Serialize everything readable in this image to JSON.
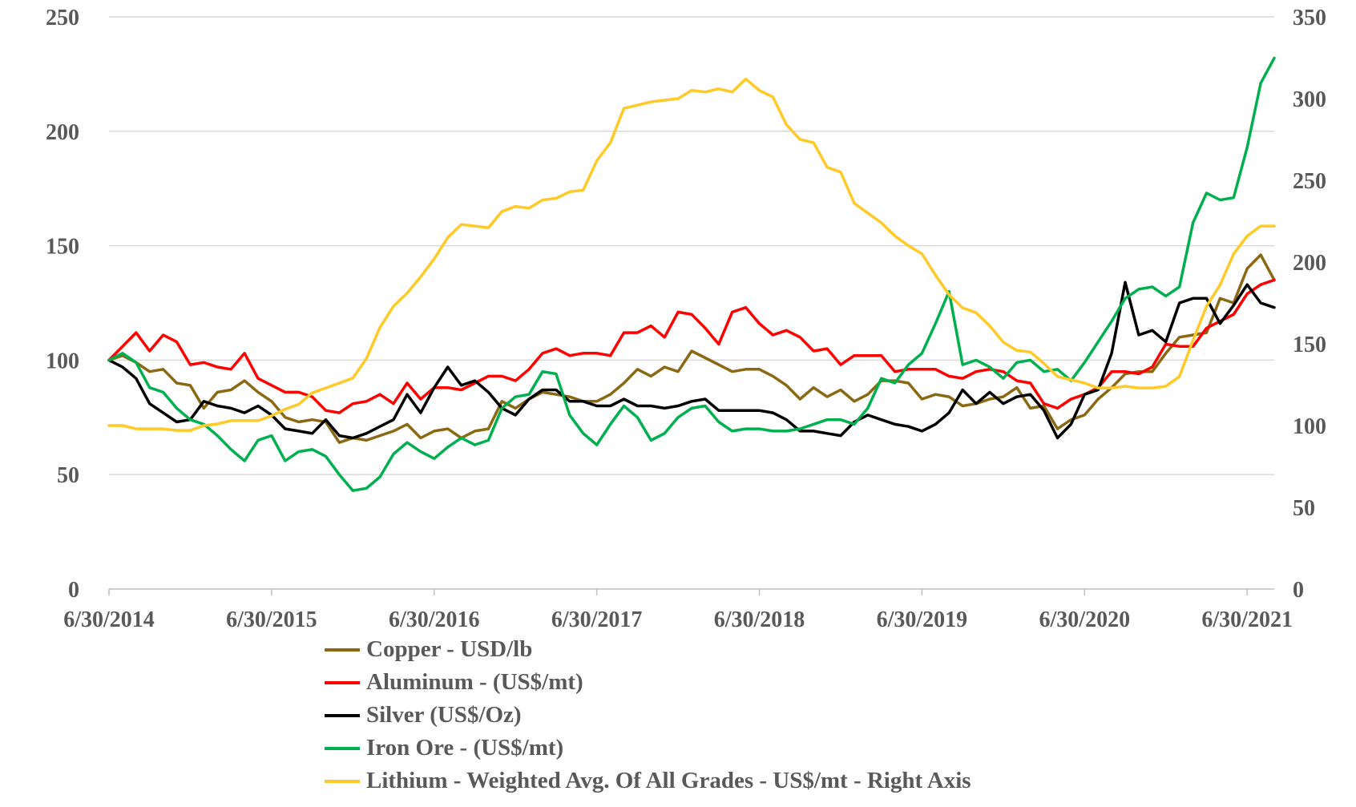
{
  "chart_data": {
    "type": "line",
    "x_start": "6/30/2014",
    "x_step": "month",
    "x_ticks": [
      "6/30/2014",
      "6/30/2015",
      "6/30/2016",
      "6/30/2017",
      "6/30/2018",
      "6/30/2019",
      "6/30/2020",
      "6/30/2021"
    ],
    "y_left": {
      "range": [
        0,
        250
      ],
      "ticks": [
        "0",
        "50",
        "100",
        "150",
        "200",
        "250"
      ]
    },
    "y_right": {
      "range": [
        0,
        350
      ],
      "ticks": [
        "0",
        "50",
        "100",
        "150",
        "200",
        "250",
        "300",
        "350"
      ]
    },
    "grid": "horizontal",
    "legend_position": "bottom",
    "series": [
      {
        "name": "Copper - USD/lb",
        "axis": "left",
        "color": "#8B6914",
        "values": [
          100,
          102,
          99,
          95,
          96,
          90,
          89,
          79,
          86,
          87,
          91,
          86,
          82,
          75,
          73,
          74,
          73,
          64,
          66,
          65,
          67,
          69,
          72,
          66,
          69,
          70,
          66,
          69,
          70,
          82,
          79,
          83,
          86,
          85,
          84,
          82,
          82,
          85,
          90,
          96,
          93,
          97,
          95,
          104,
          101,
          98,
          95,
          96,
          96,
          93,
          89,
          83,
          88,
          84,
          87,
          82,
          85,
          91,
          91,
          90,
          83,
          85,
          84,
          80,
          81,
          83,
          84,
          88,
          79,
          80,
          70,
          74,
          76,
          83,
          88,
          94,
          95,
          95,
          103,
          110,
          111,
          112,
          127,
          125,
          140,
          146,
          135
        ]
      },
      {
        "name": "Aluminum - (US$/mt)",
        "axis": "left",
        "color": "#FF0000",
        "values": [
          100,
          106,
          112,
          104,
          111,
          108,
          98,
          99,
          97,
          96,
          103,
          92,
          89,
          86,
          86,
          84,
          78,
          77,
          81,
          82,
          85,
          81,
          90,
          83,
          88,
          88,
          87,
          90,
          93,
          93,
          91,
          96,
          103,
          105,
          102,
          103,
          103,
          102,
          112,
          112,
          115,
          110,
          121,
          120,
          114,
          107,
          121,
          123,
          116,
          111,
          113,
          110,
          104,
          105,
          98,
          102,
          102,
          102,
          95,
          96,
          96,
          96,
          93,
          92,
          95,
          96,
          95,
          91,
          90,
          81,
          79,
          83,
          85,
          88,
          95,
          95,
          94,
          97,
          107,
          106,
          106,
          114,
          117,
          120,
          129,
          133,
          135
        ]
      },
      {
        "name": "Silver (US$/Oz)",
        "axis": "left",
        "color": "#000000",
        "values": [
          100,
          97,
          92,
          81,
          77,
          73,
          74,
          82,
          80,
          79,
          77,
          80,
          76,
          70,
          69,
          68,
          74,
          67,
          66,
          68,
          71,
          74,
          85,
          77,
          88,
          97,
          89,
          91,
          86,
          79,
          76,
          83,
          87,
          87,
          82,
          82,
          80,
          80,
          83,
          80,
          80,
          79,
          80,
          82,
          83,
          78,
          78,
          78,
          78,
          77,
          74,
          69,
          69,
          68,
          67,
          73,
          76,
          74,
          72,
          71,
          69,
          72,
          77,
          87,
          81,
          86,
          81,
          84,
          85,
          78,
          66,
          72,
          85,
          87,
          103,
          134,
          111,
          113,
          108,
          125,
          127,
          127,
          116,
          124,
          133,
          125,
          123
        ]
      },
      {
        "name": "Iron Ore - (US$/mt)",
        "axis": "left",
        "color": "#00B050",
        "values": [
          100,
          103,
          99,
          88,
          86,
          79,
          74,
          72,
          67,
          61,
          56,
          65,
          67,
          56,
          60,
          61,
          58,
          50,
          43,
          44,
          49,
          59,
          64,
          60,
          57,
          62,
          66,
          63,
          65,
          79,
          84,
          85,
          95,
          94,
          76,
          68,
          63,
          72,
          80,
          75,
          65,
          68,
          75,
          79,
          80,
          73,
          69,
          70,
          70,
          69,
          69,
          70,
          72,
          74,
          74,
          72,
          79,
          92,
          90,
          98,
          103,
          116,
          130,
          98,
          100,
          97,
          92,
          99,
          100,
          95,
          96,
          91,
          99,
          108,
          117,
          127,
          131,
          132,
          128,
          132,
          160,
          173,
          170,
          171,
          193,
          221,
          232
        ]
      },
      {
        "name": "Lithium - Weighted Avg. Of All Grades - US$/mt - Right Axis",
        "axis": "right",
        "color": "#FFCA28",
        "values": [
          100,
          100,
          98,
          98,
          98,
          97,
          97,
          100,
          101,
          103,
          103,
          103,
          106,
          110,
          113,
          120,
          123,
          126,
          129,
          141,
          160,
          173,
          181,
          191,
          202,
          215,
          223,
          222,
          221,
          231,
          234,
          233,
          238,
          239,
          243,
          244,
          262,
          273,
          294,
          296,
          298,
          299,
          300,
          305,
          304,
          306,
          304,
          312,
          305,
          301,
          284,
          275,
          273,
          258,
          255,
          236,
          230,
          224,
          216,
          210,
          205,
          192,
          180,
          172,
          169,
          161,
          151,
          146,
          145,
          138,
          130,
          128,
          126,
          123,
          123,
          124,
          123,
          123,
          124,
          130,
          152,
          173,
          186,
          205,
          216,
          222,
          222
        ]
      }
    ]
  }
}
